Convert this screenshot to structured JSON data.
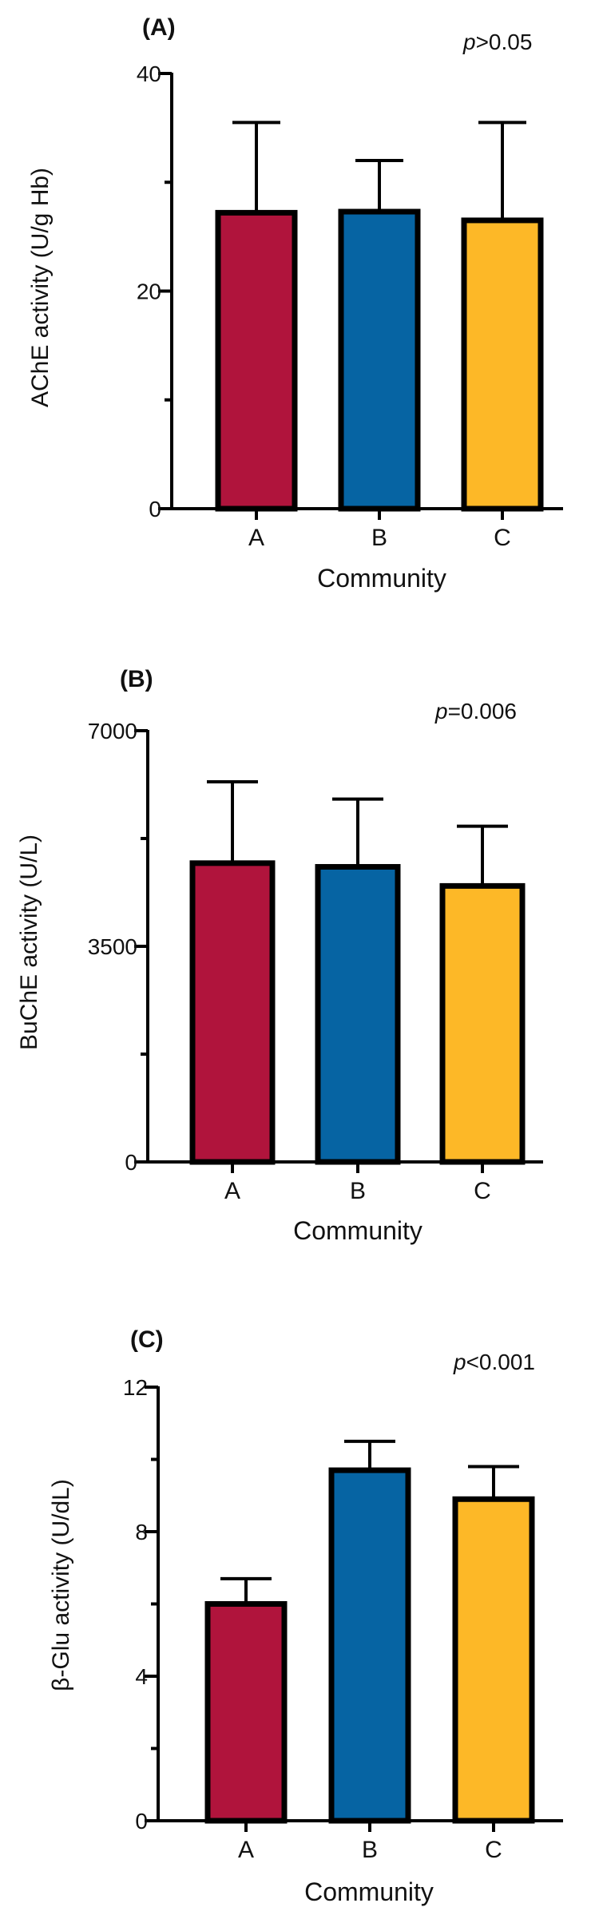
{
  "chart_data": [
    {
      "type": "bar",
      "panel_label": "(A)",
      "annotation": {
        "prefix": "p",
        "text": ">0.05"
      },
      "ylabel": "AChE activity (U/g Hb)",
      "xlabel": "Community",
      "categories": [
        "A",
        "B",
        "C"
      ],
      "values": [
        27.2,
        27.3,
        26.5
      ],
      "error_upper": [
        35.5,
        32.0,
        35.5
      ],
      "ylim": [
        0,
        40
      ],
      "major_ticks": [
        0,
        20,
        40
      ],
      "tick_labels": [
        "0",
        "20",
        "40"
      ],
      "minor_ticks": [
        10,
        30
      ],
      "colors": [
        "#b0143c",
        "#0664a3",
        "#fdb827"
      ]
    },
    {
      "type": "bar",
      "panel_label": "(B)",
      "annotation": {
        "prefix": "p",
        "text": "=0.006"
      },
      "ylabel": "BuChE activity (U/L)",
      "xlabel": "Community",
      "categories": [
        "A",
        "B",
        "C"
      ],
      "values": [
        4850,
        4790,
        4480
      ],
      "error_upper": [
        6170,
        5890,
        5450
      ],
      "ylim": [
        0,
        7000
      ],
      "major_ticks": [
        0,
        3500,
        7000
      ],
      "tick_labels": [
        "0",
        "3500",
        "7000"
      ],
      "minor_ticks": [
        1750,
        5250
      ],
      "colors": [
        "#b0143c",
        "#0664a3",
        "#fdb827"
      ]
    },
    {
      "type": "bar",
      "panel_label": "(C)",
      "annotation": {
        "prefix": "p",
        "text": "<0.001"
      },
      "ylabel": "β-Glu activity (U/dL)",
      "xlabel": "Community",
      "categories": [
        "A",
        "B",
        "C"
      ],
      "values": [
        6.0,
        9.7,
        8.9
      ],
      "error_upper": [
        6.7,
        10.5,
        9.8
      ],
      "ylim": [
        0,
        12
      ],
      "major_ticks": [
        0,
        4,
        8,
        12
      ],
      "tick_labels": [
        "0",
        "4",
        "8",
        "12"
      ],
      "minor_ticks": [
        2,
        6,
        10
      ],
      "colors": [
        "#b0143c",
        "#0664a3",
        "#fdb827"
      ]
    }
  ]
}
